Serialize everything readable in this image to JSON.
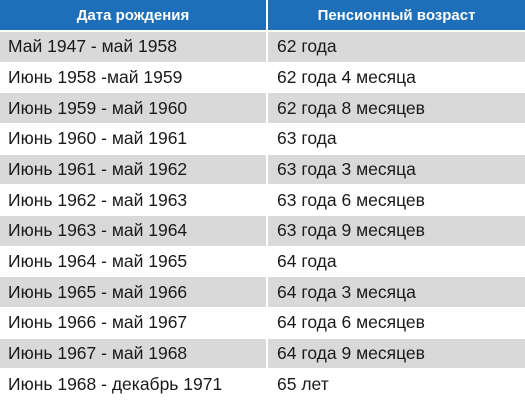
{
  "table": {
    "headers": [
      "Дата рождения",
      "Пенсионный возраст"
    ],
    "rows": [
      [
        "Май 1947 - май 1958",
        "62 года"
      ],
      [
        "Июнь 1958 -май 1959",
        "62 года 4 месяца"
      ],
      [
        "Июнь 1959 - май 1960",
        "62 года 8 месяцев"
      ],
      [
        "Июнь 1960 - май 1961",
        "63 года"
      ],
      [
        "Июнь 1961 - май 1962",
        "63 года 3 месяца"
      ],
      [
        "Июнь 1962 - май 1963",
        "63 года 6 месяцев"
      ],
      [
        "Июнь 1963 - май 1964",
        "63 года 9 месяцев"
      ],
      [
        "Июнь 1964 - май 1965",
        "64 года"
      ],
      [
        "Июнь 1965 - май 1966",
        "64 года 3 месяца"
      ],
      [
        "Июнь 1966 - май 1967",
        "64 года 6 месяцев"
      ],
      [
        "Июнь 1967 - май 1968",
        "64 года 9 месяцев"
      ],
      [
        "Июнь 1968 - декабрь 1971",
        "65 лет"
      ]
    ]
  },
  "colors": {
    "header_background": "#1c6fb8",
    "header_text": "#ffffff",
    "row_shaded": "#d9d9d9",
    "row_plain": "#ffffff",
    "body_text": "#1a1a1a"
  }
}
